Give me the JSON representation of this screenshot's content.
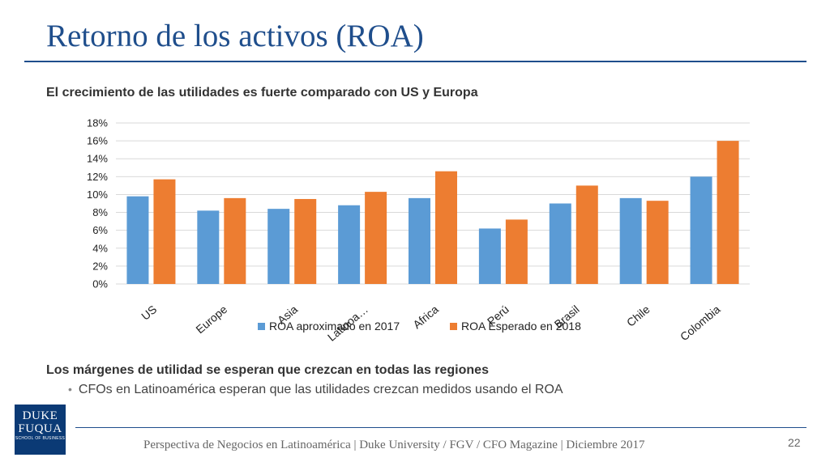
{
  "slide": {
    "title": "Retorno de los activos (ROA)",
    "subtitle": "El crecimiento de las utilidades es fuerte comparado con US y Europa",
    "heading2": "Los márgenes de utilidad se esperan que crezcan en todas las regiones",
    "bullets": [
      "CFOs en Latinoamérica esperan que las utilidades crezcan medidos usando el ROA"
    ],
    "logo": {
      "line1": "DUKE",
      "line2": "FUQUA",
      "line3": "SCHOOL OF BUSINESS"
    },
    "footer": "Perspectiva de Negocios en Latinoamérica | Duke University / FGV / CFO Magazine | Diciembre 2017",
    "page_number": "22",
    "colors": {
      "title": "#1f4e8c",
      "series1": "#5b9bd5",
      "series2": "#ed7d31"
    }
  },
  "chart_data": {
    "type": "bar",
    "categories": [
      "US",
      "Europe",
      "Asia",
      "Latinoa…",
      "Africa",
      "Perú",
      "Brasil",
      "Chile",
      "Colombia"
    ],
    "series": [
      {
        "name": "ROA aproximado en 2017",
        "color": "#5b9bd5",
        "values": [
          9.8,
          8.2,
          8.4,
          8.8,
          9.6,
          6.2,
          9.0,
          9.6,
          12.0
        ]
      },
      {
        "name": "ROA Esperado en 2018",
        "color": "#ed7d31",
        "values": [
          11.7,
          9.6,
          9.5,
          10.3,
          12.6,
          7.2,
          11.0,
          9.3,
          16.0
        ]
      }
    ],
    "ylim": [
      0,
      18
    ],
    "yticks": [
      0,
      2,
      4,
      6,
      8,
      10,
      12,
      14,
      16,
      18
    ],
    "ytick_labels": [
      "0%",
      "2%",
      "4%",
      "6%",
      "8%",
      "10%",
      "12%",
      "14%",
      "16%",
      "18%"
    ],
    "grid": true,
    "legend": "bottom"
  }
}
